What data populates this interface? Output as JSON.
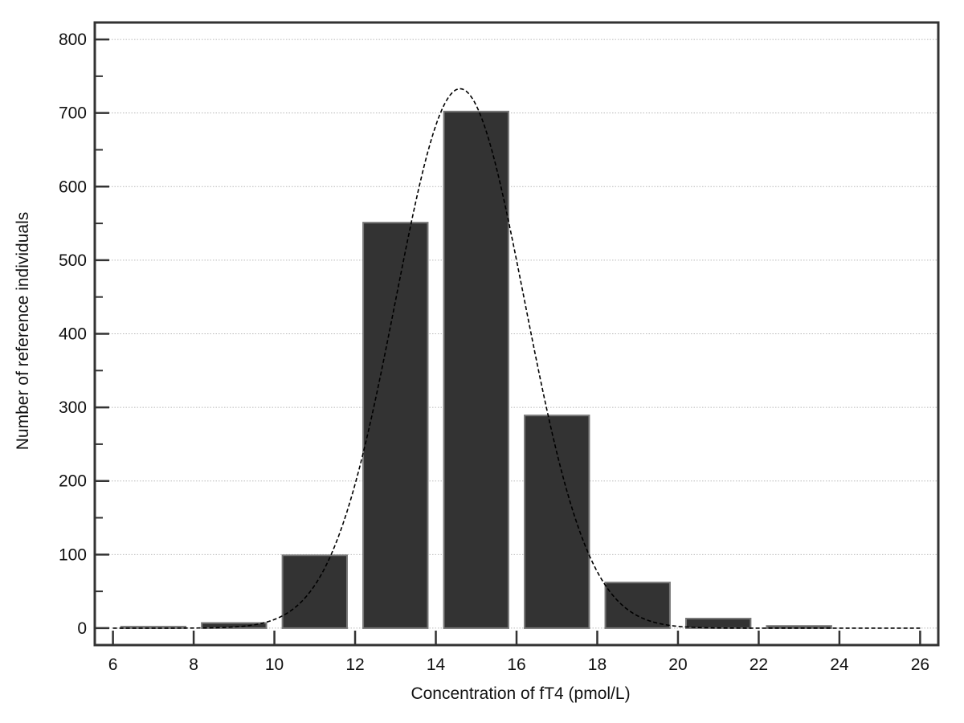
{
  "chart_data": {
    "type": "bar",
    "title": "",
    "xlabel": "Concentration of fT4 (pmol/L)",
    "ylabel": "Number of reference individuals",
    "xlim": [
      5.55,
      26.45
    ],
    "ylim": [
      -23,
      823
    ],
    "xticks": [
      6,
      8,
      10,
      12,
      14,
      16,
      18,
      20,
      22,
      24,
      26
    ],
    "yticks": [
      0,
      100,
      200,
      300,
      400,
      500,
      600,
      700,
      800
    ],
    "y_minor_tick_step": 50,
    "grid": "horizontal dotted lines at y ticks",
    "legend": "none",
    "bin_width": 2,
    "bins": [
      {
        "start": 6,
        "end": 8,
        "value": 2
      },
      {
        "start": 8,
        "end": 10,
        "value": 7
      },
      {
        "start": 10,
        "end": 12,
        "value": 99
      },
      {
        "start": 12,
        "end": 14,
        "value": 551
      },
      {
        "start": 14,
        "end": 16,
        "value": 702
      },
      {
        "start": 16,
        "end": 18,
        "value": 289
      },
      {
        "start": 18,
        "end": 20,
        "value": 62
      },
      {
        "start": 20,
        "end": 22,
        "value": 13
      },
      {
        "start": 22,
        "end": 24,
        "value": 3
      },
      {
        "start": 24,
        "end": 26,
        "value": 0
      }
    ],
    "fitted_curve": {
      "kind": "normal density (dashed)",
      "mean": 14.6,
      "sd": 1.6,
      "peak": 733,
      "x_range": [
        6,
        26
      ]
    },
    "colors": {
      "bar_fill": "#333333",
      "bar_stroke": "#777777",
      "axis": "#333333",
      "grid": "#b8b8b8",
      "curve": "#000000"
    }
  }
}
